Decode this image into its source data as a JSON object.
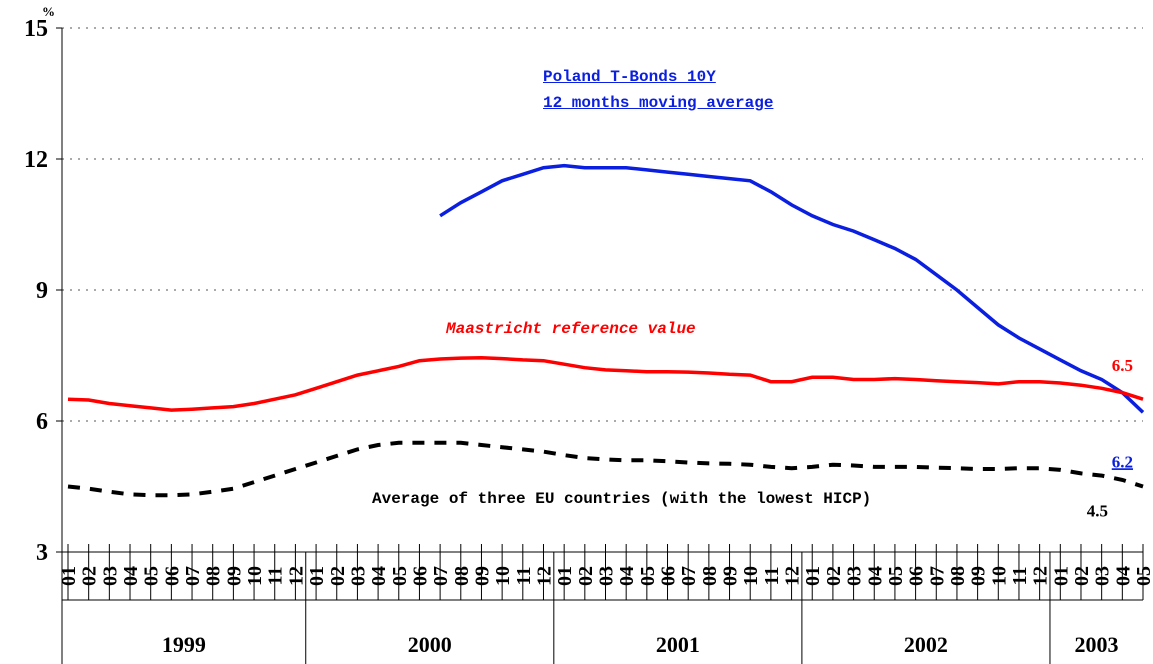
{
  "chart_data": {
    "type": "line",
    "y_unit": "%",
    "ylim": [
      3,
      15
    ],
    "yticks": [
      3,
      6,
      9,
      12,
      15
    ],
    "grid": true,
    "categories": [
      "01",
      "02",
      "03",
      "04",
      "05",
      "06",
      "07",
      "08",
      "09",
      "10",
      "11",
      "12",
      "01",
      "02",
      "03",
      "04",
      "05",
      "06",
      "07",
      "08",
      "09",
      "10",
      "11",
      "12",
      "01",
      "02",
      "03",
      "04",
      "05",
      "06",
      "07",
      "08",
      "09",
      "10",
      "11",
      "12",
      "01",
      "02",
      "03",
      "04",
      "05",
      "06",
      "07",
      "08",
      "09",
      "10",
      "11",
      "12",
      "01",
      "02",
      "03",
      "04",
      "05"
    ],
    "years": [
      "1999",
      "2000",
      "2001",
      "2002",
      "2003"
    ],
    "series": [
      {
        "name": "Poland T-Bonds 10Y\n12 months moving average",
        "color": "#0a1fe0",
        "dash": false,
        "values": [
          null,
          null,
          null,
          null,
          null,
          null,
          null,
          null,
          null,
          null,
          null,
          null,
          null,
          null,
          null,
          null,
          null,
          null,
          10.7,
          11.0,
          11.25,
          11.5,
          11.65,
          11.8,
          11.85,
          11.8,
          11.8,
          11.8,
          11.75,
          11.7,
          11.65,
          11.6,
          11.55,
          11.5,
          11.25,
          10.95,
          10.7,
          10.5,
          10.35,
          10.15,
          9.95,
          9.7,
          9.35,
          9.0,
          8.6,
          8.2,
          7.9,
          7.65,
          7.4,
          7.15,
          6.95,
          6.65,
          6.2
        ]
      },
      {
        "name": "Maastricht reference value",
        "color": "#ff0000",
        "dash": false,
        "values": [
          6.5,
          6.48,
          6.4,
          6.35,
          6.3,
          6.25,
          6.27,
          6.3,
          6.33,
          6.4,
          6.5,
          6.6,
          6.75,
          6.9,
          7.05,
          7.15,
          7.25,
          7.38,
          7.42,
          7.44,
          7.45,
          7.43,
          7.4,
          7.38,
          7.3,
          7.22,
          7.17,
          7.15,
          7.13,
          7.13,
          7.12,
          7.1,
          7.07,
          7.05,
          6.9,
          6.9,
          7.0,
          7.0,
          6.95,
          6.95,
          6.97,
          6.95,
          6.92,
          6.9,
          6.88,
          6.85,
          6.9,
          6.9,
          6.87,
          6.82,
          6.75,
          6.65,
          6.5
        ]
      },
      {
        "name": "Average of three EU countries (with the lowest HICP)",
        "color": "#000000",
        "dash": true,
        "values": [
          4.5,
          4.45,
          4.38,
          4.32,
          4.3,
          4.3,
          4.32,
          4.38,
          4.45,
          4.6,
          4.75,
          4.9,
          5.05,
          5.2,
          5.35,
          5.45,
          5.5,
          5.5,
          5.5,
          5.5,
          5.45,
          5.4,
          5.35,
          5.3,
          5.22,
          5.15,
          5.12,
          5.1,
          5.1,
          5.08,
          5.05,
          5.03,
          5.02,
          5.0,
          4.95,
          4.92,
          4.95,
          5.0,
          4.98,
          4.95,
          4.95,
          4.95,
          4.93,
          4.92,
          4.9,
          4.9,
          4.92,
          4.92,
          4.88,
          4.8,
          4.75,
          4.65,
          4.5
        ]
      }
    ]
  }
}
